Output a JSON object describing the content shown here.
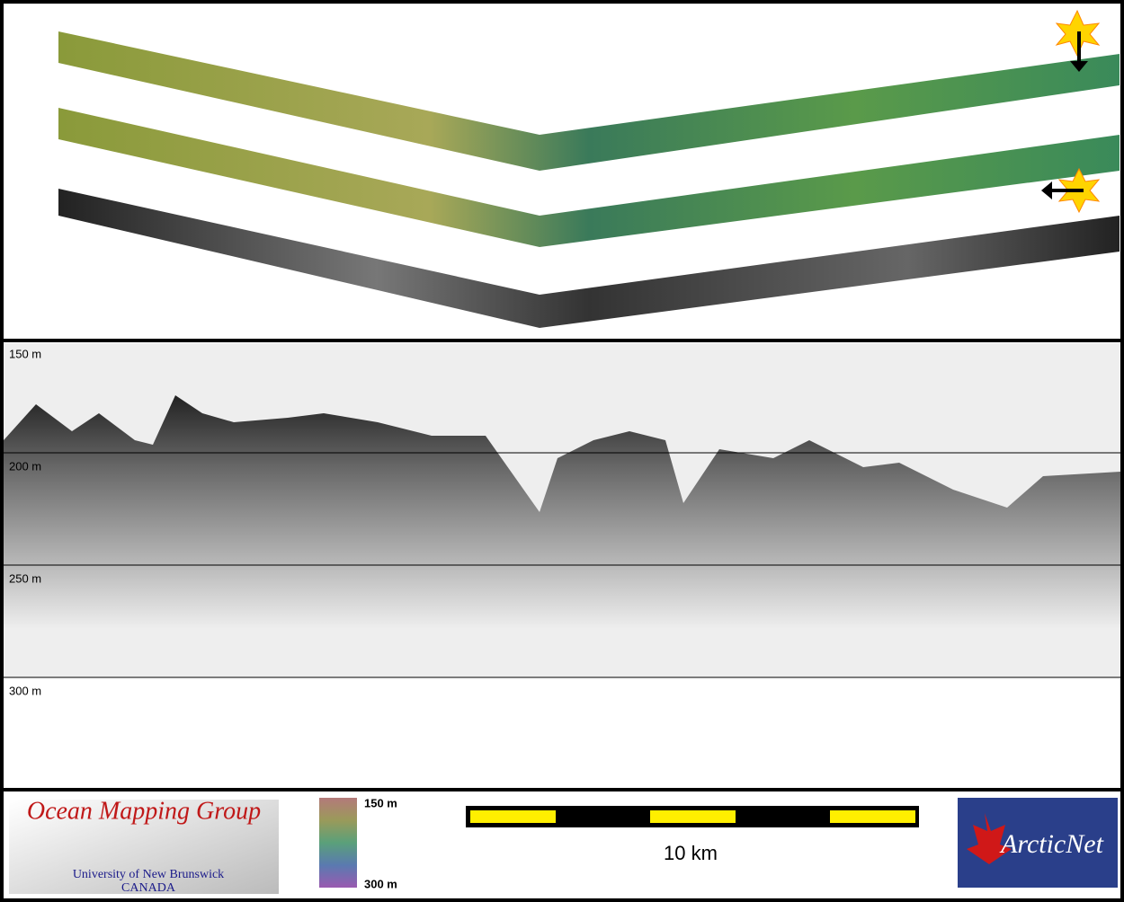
{
  "profile": {
    "depth_labels": [
      "150 m",
      "200 m",
      "250 m",
      "300 m"
    ]
  },
  "legend": {
    "top": "150 m",
    "bottom": "300 m"
  },
  "scale_bar": {
    "label": "10 km"
  },
  "logos": {
    "group": "Ocean Mapping Group",
    "university": "University of New Brunswick",
    "country": "CANADA",
    "network": "ArcticNet"
  }
}
